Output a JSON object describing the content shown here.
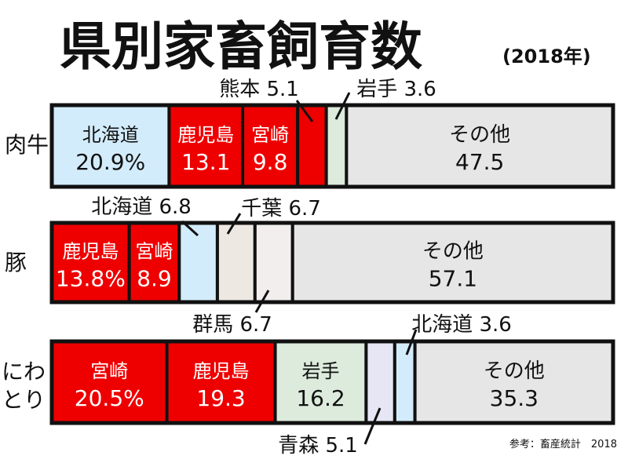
{
  "title": "県別家畜飼育数",
  "subtitle": "(2018年)",
  "source": "参考：畜産統計　2018",
  "colors": {
    "highlight": "#ee0000",
    "hokkaido": "#d3ecfb",
    "iwate": "#dcebdc",
    "chiba": "#ede8e1",
    "gunma": "#f2eeee",
    "aomori": "#e6e6f4",
    "other": "#e6e6e6"
  },
  "chart_data": {
    "type": "bar",
    "stacked": true,
    "unit": "%",
    "xlim": [
      0,
      100
    ],
    "categories": [
      "肉牛",
      "豚",
      "にわとり"
    ],
    "series": [
      {
        "category": "肉牛",
        "segments": [
          {
            "label": "北海道",
            "value_text": "20.9%",
            "value": 20.9,
            "color": "hokkaido"
          },
          {
            "label": "鹿児島",
            "value_text": "13.1",
            "value": 13.1,
            "color": "highlight"
          },
          {
            "label": "宮崎",
            "value_text": "9.8",
            "value": 9.8,
            "color": "highlight"
          },
          {
            "label": "熊本",
            "value_text": "5.1",
            "value": 5.1,
            "color": "highlight",
            "callout": "熊本 5.1"
          },
          {
            "label": "岩手",
            "value_text": "3.6",
            "value": 3.6,
            "color": "iwate",
            "callout": "岩手 3.6"
          },
          {
            "label": "その他",
            "value_text": "47.5",
            "value": 47.5,
            "color": "other"
          }
        ]
      },
      {
        "category": "豚",
        "segments": [
          {
            "label": "鹿児島",
            "value_text": "13.8%",
            "value": 13.8,
            "color": "highlight"
          },
          {
            "label": "宮崎",
            "value_text": "8.9",
            "value": 8.9,
            "color": "highlight"
          },
          {
            "label": "北海道",
            "value_text": "6.8",
            "value": 6.8,
            "color": "hokkaido",
            "callout": "北海道 6.8"
          },
          {
            "label": "千葉",
            "value_text": "6.7",
            "value": 6.7,
            "color": "chiba",
            "callout": "千葉 6.7"
          },
          {
            "label": "群馬",
            "value_text": "6.7",
            "value": 6.7,
            "color": "gunma",
            "callout": "群馬 6.7"
          },
          {
            "label": "その他",
            "value_text": "57.1",
            "value": 57.1,
            "color": "other"
          }
        ]
      },
      {
        "category": "にわとり",
        "segments": [
          {
            "label": "宮崎",
            "value_text": "20.5%",
            "value": 20.5,
            "color": "highlight"
          },
          {
            "label": "鹿児島",
            "value_text": "19.3",
            "value": 19.3,
            "color": "highlight"
          },
          {
            "label": "岩手",
            "value_text": "16.2",
            "value": 16.2,
            "color": "iwate"
          },
          {
            "label": "青森",
            "value_text": "5.1",
            "value": 5.1,
            "color": "aomori",
            "callout": "青森 5.1"
          },
          {
            "label": "北海道",
            "value_text": "3.6",
            "value": 3.6,
            "color": "hokkaido",
            "callout": "北海道 3.6"
          },
          {
            "label": "その他",
            "value_text": "35.3",
            "value": 35.3,
            "color": "other"
          }
        ]
      }
    ]
  }
}
